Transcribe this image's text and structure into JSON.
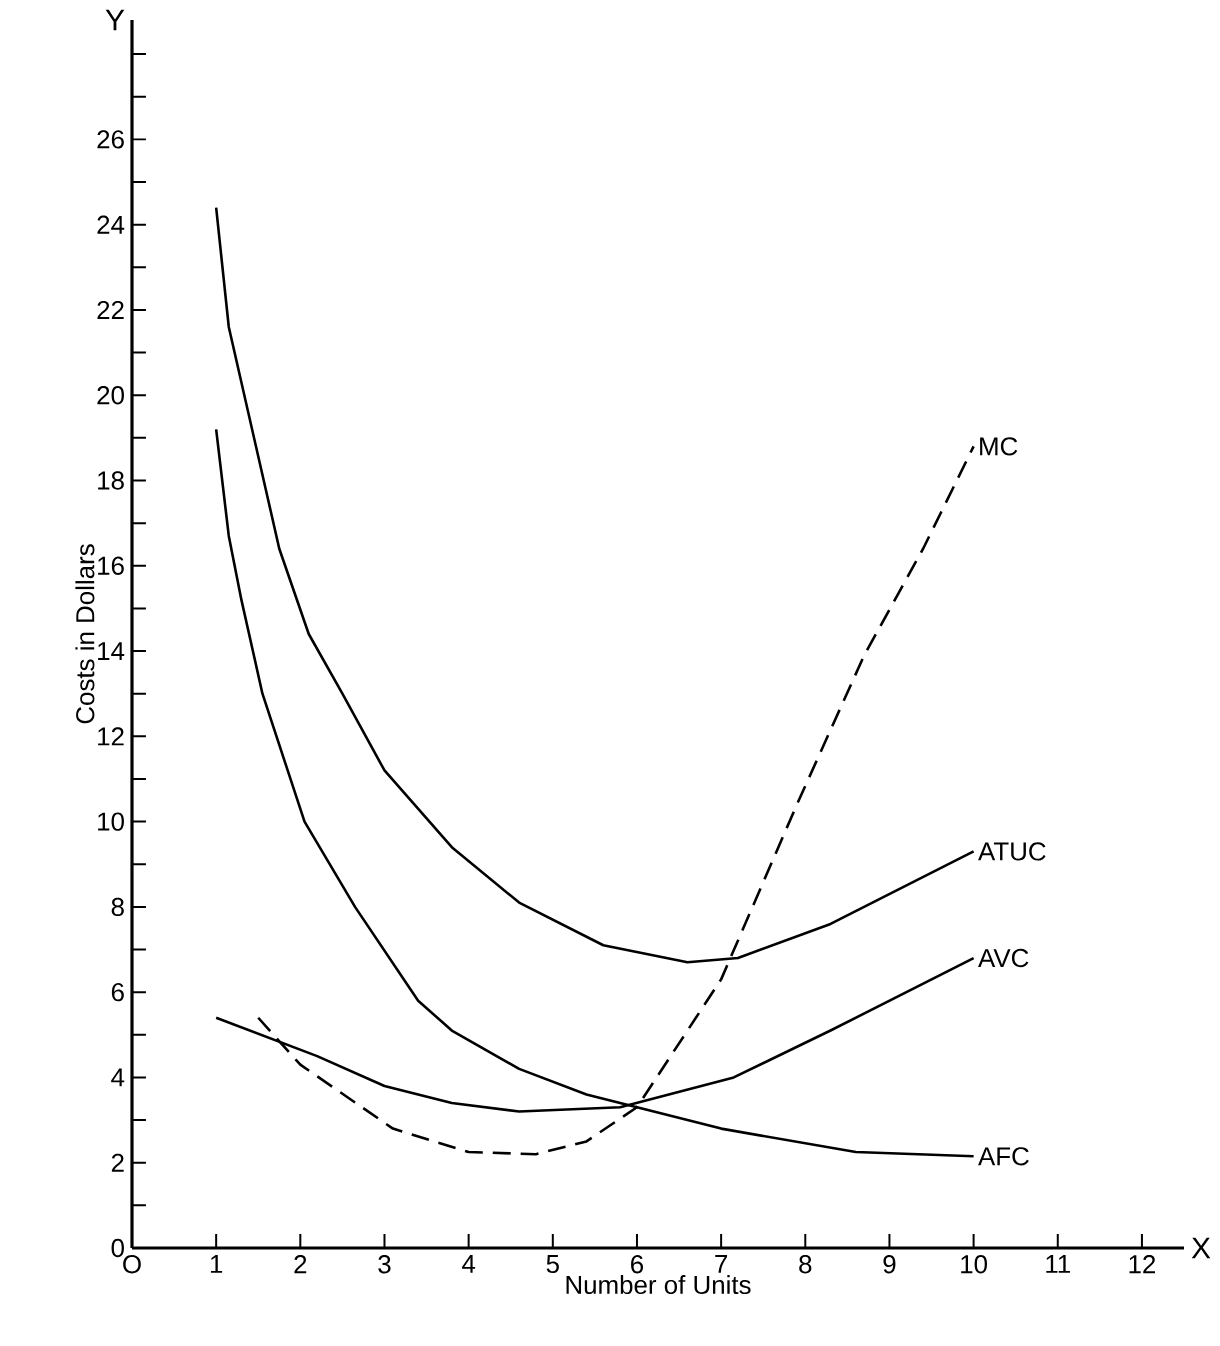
{
  "chart_data": {
    "type": "line",
    "xlabel": "Number of Units",
    "ylabel": "Costs in Dollars",
    "annotations": [
      "X",
      "Y"
    ],
    "xlim": [
      0,
      12.5
    ],
    "ylim": [
      0,
      28.8
    ],
    "xticks": [
      {
        "value": 0,
        "label": "O"
      },
      1,
      2,
      3,
      4,
      5,
      6,
      7,
      8,
      9,
      10,
      11,
      12
    ],
    "yticks": [
      0,
      {
        "value": 1,
        "label": null
      },
      2,
      {
        "value": 3,
        "label": null
      },
      4,
      {
        "value": 5,
        "label": null
      },
      6,
      {
        "value": 7,
        "label": null
      },
      8,
      {
        "value": 9,
        "label": null
      },
      10,
      {
        "value": 11,
        "label": null
      },
      12,
      {
        "value": 13,
        "label": null
      },
      14,
      {
        "value": 15,
        "label": null
      },
      16,
      {
        "value": 17,
        "label": null
      },
      18,
      {
        "value": 19,
        "label": null
      },
      20,
      {
        "value": 21,
        "label": null
      },
      22,
      {
        "value": 23,
        "label": null
      },
      24,
      {
        "value": 25,
        "label": null
      },
      26,
      {
        "value": 27,
        "label": null
      },
      {
        "value": 28,
        "label": null
      }
    ],
    "marker": "none",
    "series": [
      {
        "name": "MC",
        "color": "#000000",
        "line_style": "dashed",
        "x": [
          1.5,
          2,
          3.1,
          4,
          4.8,
          5.4,
          6,
          7,
          7.9,
          8.7,
          9.4,
          10
        ],
        "values": [
          5.4,
          4.3,
          2.8,
          2.25,
          2.2,
          2.5,
          3.3,
          6.3,
          10.4,
          13.9,
          16.4,
          18.8
        ]
      },
      {
        "name": "ATUC",
        "color": "#000000",
        "line_style": "solid",
        "x": [
          1,
          1.15,
          1.3,
          1.75,
          2.1,
          2.5,
          3,
          3.8,
          4.6,
          5.6,
          6.6,
          7.2,
          8.3,
          10
        ],
        "values": [
          24.4,
          21.6,
          20.3,
          16.4,
          14.4,
          13.0,
          11.2,
          9.4,
          8.1,
          7.1,
          6.7,
          6.8,
          7.6,
          9.3
        ]
      },
      {
        "name": "AVC",
        "color": "#000000",
        "line_style": "solid",
        "x": [
          1,
          2.2,
          3,
          3.8,
          4.6,
          5.8,
          7.15,
          8.3,
          10
        ],
        "values": [
          5.4,
          4.5,
          3.8,
          3.4,
          3.2,
          3.3,
          4.0,
          5.1,
          6.8
        ]
      },
      {
        "name": "AFC",
        "color": "#000000",
        "line_style": "solid",
        "x": [
          1,
          1.15,
          1.3,
          1.55,
          2.05,
          2.65,
          3.4,
          3.8,
          4.6,
          5.4,
          6,
          7,
          8.6,
          10
        ],
        "values": [
          19.2,
          16.7,
          15.2,
          13.0,
          10.0,
          8.0,
          5.8,
          5.1,
          4.2,
          3.6,
          3.3,
          2.8,
          2.25,
          2.15
        ]
      }
    ]
  }
}
